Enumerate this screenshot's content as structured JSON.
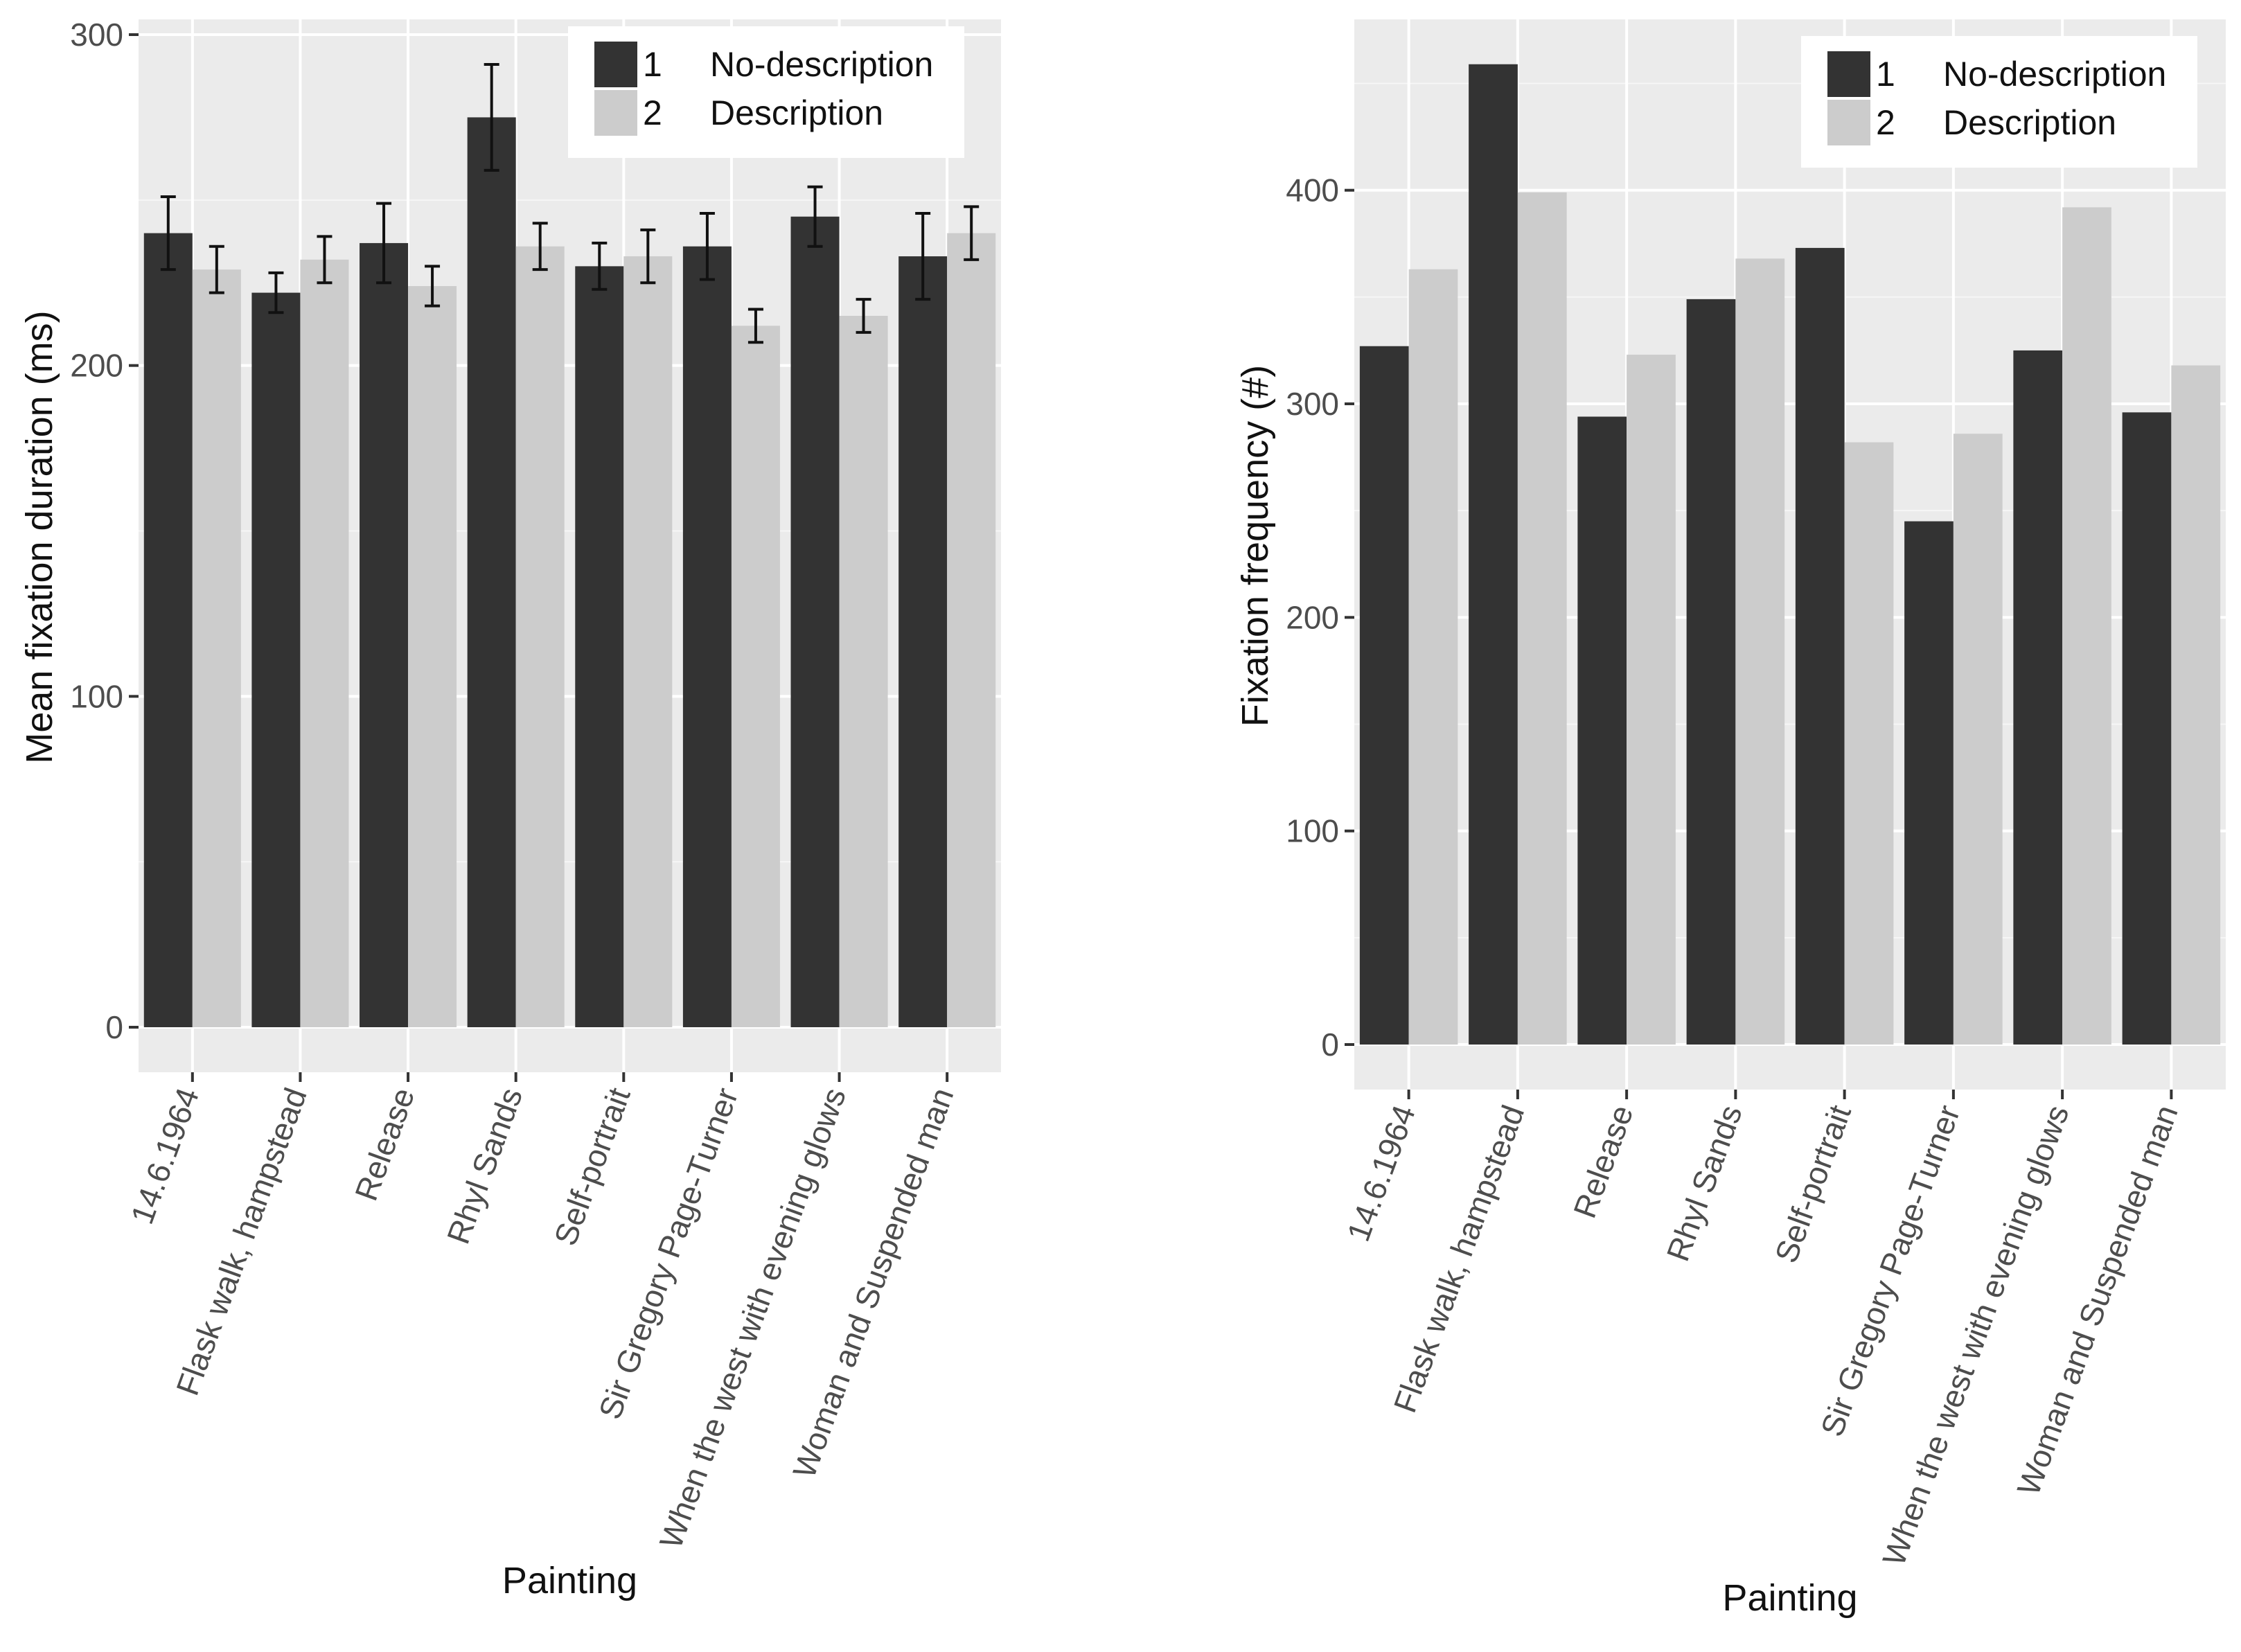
{
  "colors": {
    "no_description": "#333333",
    "description": "#cccccc",
    "panel": "#ebebeb",
    "grid": "#ffffff"
  },
  "chart_data": [
    {
      "type": "bar",
      "title": "",
      "xlabel": "Painting",
      "ylabel": "Mean fixation duration (ms)",
      "ylim": [
        0,
        300
      ],
      "yticks": [
        0,
        100,
        200,
        300
      ],
      "categories": [
        "14.6.1964",
        "Flask walk, hampstead",
        "Release",
        "Rhyl Sands",
        "Self-portrait",
        "Sir Gregory Page-Turner",
        "When the west with evening glows",
        "Woman and Suspended man"
      ],
      "legend": {
        "position": "top-right",
        "entries": [
          {
            "key": "1",
            "label": "No-description"
          },
          {
            "key": "2",
            "label": "Description"
          }
        ]
      },
      "series": [
        {
          "name": "No-description",
          "key": "1",
          "color": "#333333",
          "values": [
            240,
            222,
            237,
            275,
            230,
            236,
            245,
            233
          ],
          "error": [
            11,
            6,
            12,
            16,
            7,
            10,
            9,
            13
          ]
        },
        {
          "name": "Description",
          "key": "2",
          "color": "#cccccc",
          "values": [
            229,
            232,
            224,
            236,
            233,
            212,
            215,
            240
          ],
          "error": [
            7,
            7,
            6,
            7,
            8,
            5,
            5,
            8
          ]
        }
      ]
    },
    {
      "type": "bar",
      "title": "",
      "xlabel": "Painting",
      "ylabel": "Fixation frequency (#)",
      "ylim": [
        0,
        480
      ],
      "yticks": [
        0,
        100,
        200,
        300,
        400
      ],
      "categories": [
        "14.6.1964",
        "Flask walk, hampstead",
        "Release",
        "Rhyl Sands",
        "Self-portrait",
        "Sir Gregory Page-Turner",
        "When the west with evening glows",
        "Woman and Suspended man"
      ],
      "legend": {
        "position": "top-right",
        "entries": [
          {
            "key": "1",
            "label": "No-description"
          },
          {
            "key": "2",
            "label": "Description"
          }
        ]
      },
      "series": [
        {
          "name": "No-description",
          "key": "1",
          "color": "#333333",
          "values": [
            327,
            459,
            294,
            349,
            373,
            245,
            325,
            296
          ]
        },
        {
          "name": "Description",
          "key": "2",
          "color": "#cccccc",
          "values": [
            363,
            399,
            323,
            368,
            282,
            286,
            392,
            318
          ]
        }
      ]
    }
  ]
}
